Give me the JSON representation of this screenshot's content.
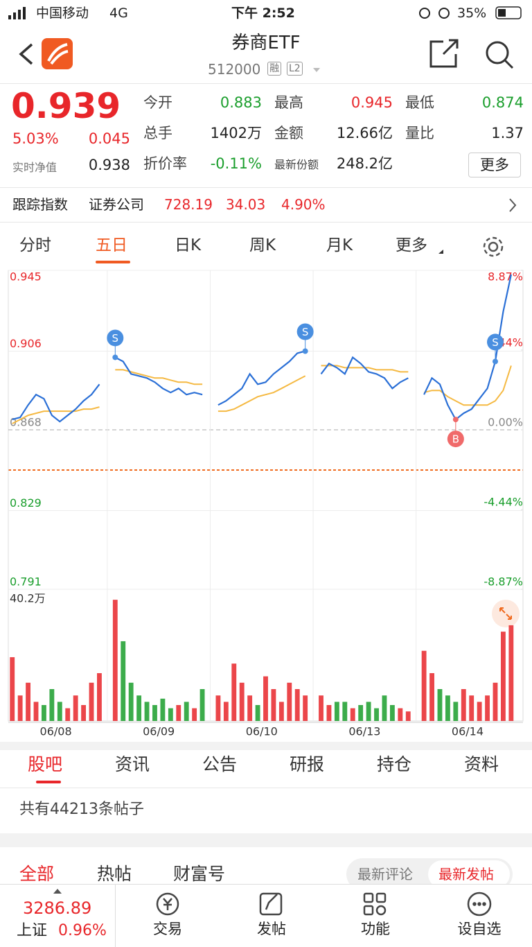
{
  "status_bar": {
    "carrier": "中国移动",
    "network": "4G",
    "time": "下午 2:52",
    "battery": "35%"
  },
  "header": {
    "title": "券商ETF",
    "code": "512000",
    "badges": [
      "融",
      "L2"
    ]
  },
  "quote": {
    "price": "0.939",
    "change_pct": "5.03%",
    "change": "0.045",
    "nav_label": "实时净值",
    "nav": "0.938",
    "fields": [
      {
        "label": "今开",
        "value": "0.883",
        "color": "#1a9e2c"
      },
      {
        "label": "最高",
        "value": "0.945",
        "color": "#e8262a"
      },
      {
        "label": "最低",
        "value": "0.874",
        "color": "#1a9e2c"
      },
      {
        "label": "总手",
        "value": "1402万",
        "color": "#222222"
      },
      {
        "label": "金额",
        "value": "12.66亿",
        "color": "#222222"
      },
      {
        "label": "量比",
        "value": "1.37",
        "color": "#222222"
      },
      {
        "label": "折价率",
        "value": "-0.11%",
        "color": "#1a9e2c"
      },
      {
        "label": "最新份额",
        "value": "248.2亿",
        "color": "#222222"
      }
    ],
    "more_button": "更多"
  },
  "index_row": {
    "label": "跟踪指数",
    "name": "证券公司",
    "value": "728.19",
    "change": "34.03",
    "pct": "4.90%"
  },
  "chart_tabs": {
    "items": [
      "分时",
      "五日",
      "日K",
      "周K",
      "月K",
      "更多"
    ],
    "active": 1
  },
  "chart_data": {
    "type": "line",
    "x": [
      0,
      1,
      2,
      3,
      4,
      5,
      6,
      7,
      8,
      9,
      10,
      11,
      12,
      13,
      14,
      15,
      16,
      17,
      18,
      19,
      20,
      21,
      22,
      23,
      24,
      25,
      26,
      27,
      28,
      29,
      30,
      31,
      32,
      33,
      34,
      35,
      36,
      37,
      38,
      39,
      40,
      41,
      42,
      43,
      44,
      45,
      46,
      47,
      48,
      49,
      50,
      51,
      52,
      53,
      54,
      55,
      56,
      57,
      58,
      59,
      60,
      61,
      62,
      63
    ],
    "xlim": [
      -0.5,
      64.5
    ],
    "xticks": [
      {
        "value": 5.5,
        "label": "06/08"
      },
      {
        "value": 18.5,
        "label": "06/09"
      },
      {
        "value": 31.5,
        "label": "06/10"
      },
      {
        "value": 44.5,
        "label": "06/13"
      },
      {
        "value": 57.5,
        "label": "06/14"
      }
    ],
    "ylim": [
      0.791,
      0.945
    ],
    "yticks": [
      0.945,
      0.906,
      0.868,
      0.829,
      0.791
    ],
    "y2lim": [
      -8.87,
      8.87
    ],
    "y2ticks": [
      {
        "value": 8.87,
        "label": "8.87%"
      },
      {
        "value": 4.44,
        "label": "4.44%"
      },
      {
        "value": 0,
        "label": "0.00%"
      },
      {
        "value": -4.44,
        "label": "-4.44%"
      },
      {
        "value": -8.87,
        "label": "-8.87%"
      }
    ],
    "series": [
      {
        "color": "#2a6fd6",
        "values": [
          0.873,
          0.874,
          0.88,
          0.885,
          0.883,
          0.875,
          0.872,
          0.875,
          0.878,
          0.882,
          0.885,
          0.89,
          null,
          0.903,
          0.901,
          0.895,
          0.894,
          0.893,
          0.891,
          0.888,
          0.886,
          0.888,
          0.885,
          0.886,
          0.885,
          null,
          0.88,
          0.882,
          0.885,
          0.888,
          0.895,
          0.89,
          0.891,
          0.895,
          0.898,
          0.901,
          0.905,
          0.906,
          null,
          0.895,
          0.9,
          0.898,
          0.895,
          0.903,
          0.9,
          0.896,
          0.895,
          0.893,
          0.888,
          0.891,
          0.893,
          null,
          0.885,
          0.893,
          0.89,
          0.88,
          0.873,
          0.876,
          0.878,
          0.883,
          0.888,
          0.901,
          0.925,
          0.943
        ]
      },
      {
        "color": "#f5b942",
        "values": [
          0.871,
          0.873,
          0.875,
          0.876,
          0.877,
          0.877,
          0.877,
          0.877,
          0.877,
          0.878,
          0.878,
          0.879,
          null,
          0.897,
          0.897,
          0.896,
          0.895,
          0.894,
          0.893,
          0.893,
          0.892,
          0.891,
          0.891,
          0.89,
          0.89,
          null,
          0.877,
          0.877,
          0.878,
          0.88,
          0.882,
          0.884,
          0.885,
          0.886,
          0.888,
          0.89,
          0.892,
          0.894,
          null,
          0.899,
          0.899,
          0.899,
          0.898,
          0.898,
          0.898,
          0.898,
          0.897,
          0.897,
          0.897,
          0.896,
          0.896,
          null,
          0.886,
          0.887,
          0.887,
          0.884,
          0.882,
          0.88,
          0.88,
          0.88,
          0.88,
          0.882,
          0.887,
          0.899
        ]
      }
    ],
    "signals": [
      {
        "x": 13,
        "label": "S"
      },
      {
        "x": 37,
        "label": "S"
      },
      {
        "x": 56,
        "label": "B"
      },
      {
        "x": 61,
        "label": "S"
      }
    ],
    "volume": {
      "max": {
        "value": 40.2,
        "label": "40.2万"
      },
      "values": [
        20,
        8,
        12,
        6,
        5,
        10,
        6,
        4,
        8,
        5,
        12,
        15,
        null,
        38,
        25,
        12,
        8,
        6,
        5,
        7,
        4,
        5,
        6,
        4,
        10,
        null,
        8,
        6,
        18,
        12,
        8,
        5,
        14,
        10,
        6,
        12,
        10,
        8,
        null,
        8,
        5,
        6,
        6,
        4,
        5,
        6,
        4,
        8,
        5,
        4,
        3,
        null,
        22,
        15,
        10,
        8,
        6,
        10,
        8,
        6,
        8,
        12,
        28,
        30
      ]
    }
  },
  "section_tabs": [
    "股吧",
    "资讯",
    "公告",
    "研报",
    "持仓",
    "资料"
  ],
  "post_count": "共有44213条帖子",
  "filter_tabs": [
    "全部",
    "热帖",
    "财富号"
  ],
  "sort_options": [
    "最新评论",
    "最新发帖"
  ],
  "bottom_bar": {
    "index_value": "3286.89",
    "index_name": "上证",
    "index_pct": "0.96%",
    "items": [
      "交易",
      "发帖",
      "功能",
      "设自选"
    ]
  }
}
